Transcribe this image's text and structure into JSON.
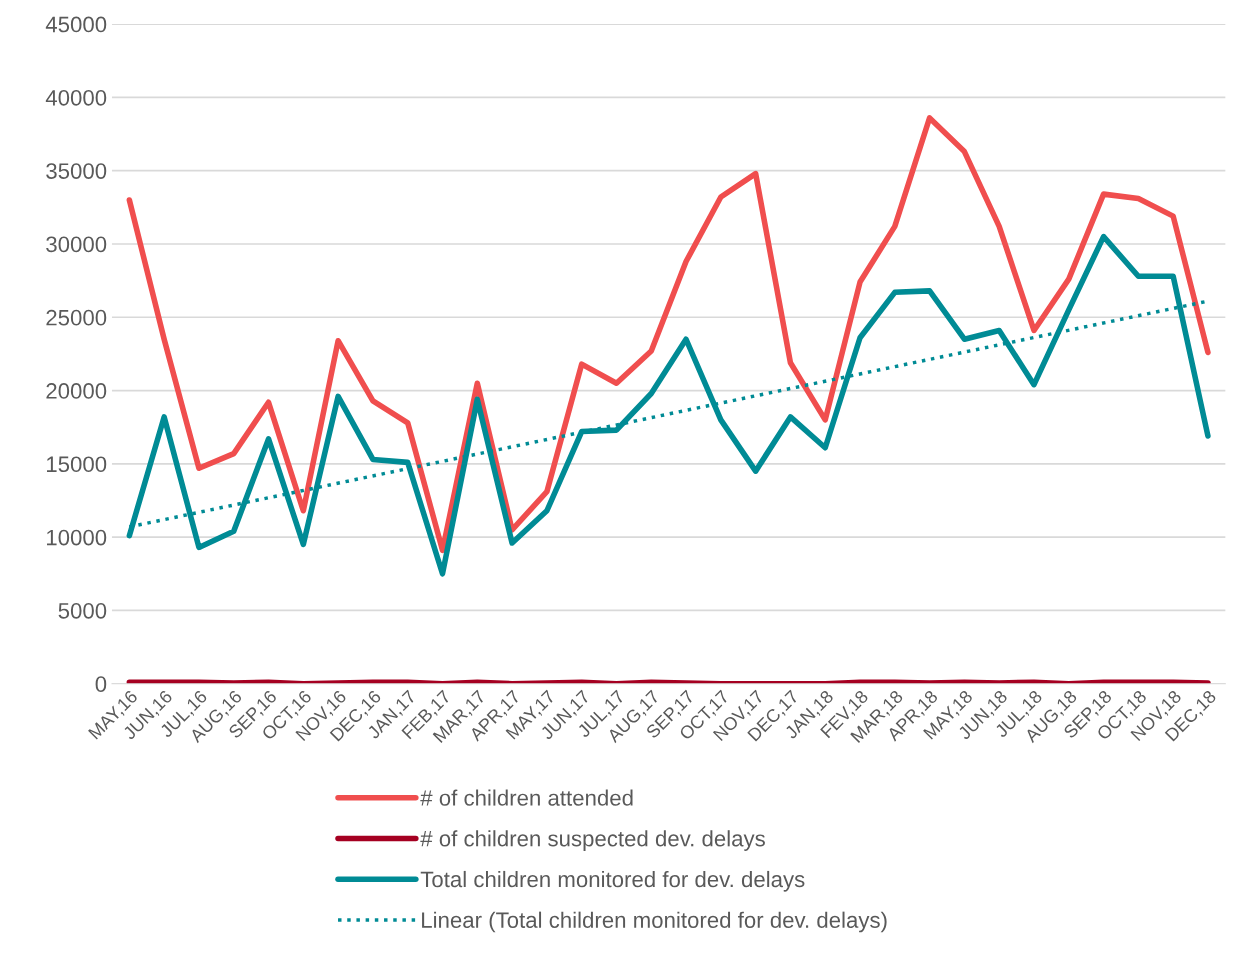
{
  "chart_data": {
    "type": "line",
    "categories": [
      "MAY,16",
      "JUN,16",
      "JUL,16",
      "AUG,16",
      "SEP,16",
      "OCT,16",
      "NOV,16",
      "DEC,16",
      "JAN,17",
      "FEB,17",
      "MAR,17",
      "APR,17",
      "MAY,17",
      "JUN,17",
      "JUL,17",
      "AUG,17",
      "SEP,17",
      "OCT,17",
      "NOV,17",
      "DEC,17",
      "JAN,18",
      "FEV,18",
      "MAR,18",
      "APR,18",
      "MAY,18",
      "JUN,18",
      "JUL,18",
      "AUG,18",
      "SEP,18",
      "OCT,18",
      "NOV,18",
      "DEC,18"
    ],
    "series": [
      {
        "name": "# of children attended",
        "color": "#f04e4e",
        "values": [
          33000,
          23500,
          14700,
          15700,
          19200,
          11800,
          23400,
          19300,
          17800,
          9100,
          20500,
          10500,
          13100,
          21800,
          20500,
          22700,
          28800,
          33200,
          34800,
          21900,
          18000,
          27400,
          31200,
          38600,
          36300,
          31200,
          24100,
          27600,
          33400,
          33100,
          31900,
          22600
        ]
      },
      {
        "name": "# of children suspected dev. delays",
        "color": "#a50021",
        "values": [
          100,
          100,
          100,
          50,
          100,
          0,
          50,
          100,
          100,
          0,
          100,
          0,
          50,
          100,
          0,
          100,
          50,
          0,
          0,
          0,
          0,
          100,
          100,
          50,
          100,
          50,
          100,
          0,
          100,
          100,
          100,
          50
        ]
      },
      {
        "name": "Total children monitored for dev. delays",
        "color": "#008b95",
        "values": [
          10100,
          18200,
          9300,
          10400,
          16700,
          9500,
          19600,
          15300,
          15100,
          7500,
          19400,
          9600,
          11800,
          17200,
          17300,
          19800,
          23500,
          18000,
          14500,
          18200,
          16100,
          23600,
          26700,
          26800,
          23500,
          24100,
          20400,
          25500,
          30500,
          27800,
          27800,
          16900
        ]
      },
      {
        "name": "Linear (Total children monitored for dev. delays)",
        "color": "#008b95",
        "line_style": "dotted",
        "values": [
          10700,
          null,
          null,
          null,
          null,
          null,
          null,
          null,
          null,
          null,
          null,
          null,
          null,
          null,
          null,
          null,
          null,
          null,
          null,
          null,
          null,
          null,
          null,
          null,
          null,
          null,
          null,
          null,
          null,
          null,
          null,
          26100
        ]
      }
    ],
    "ylim": [
      0,
      45000
    ],
    "yticks": [
      0,
      5000,
      10000,
      15000,
      20000,
      25000,
      30000,
      35000,
      40000,
      45000
    ],
    "grid": "y",
    "legend": "bottom",
    "marker": "none",
    "line_style": "solid"
  }
}
